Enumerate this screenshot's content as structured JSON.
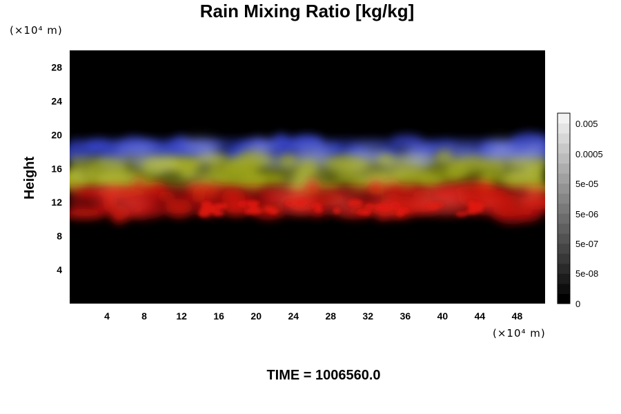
{
  "chart_data": {
    "type": "heatmap",
    "title": "Rain Mixing Ratio [kg/kg]",
    "ylabel": "Height",
    "xlabel": "",
    "x_unit": "(×10⁴ m)",
    "y_unit": "(×10⁴ m)",
    "xlim": [
      0,
      51
    ],
    "ylim": [
      0,
      30
    ],
    "x_ticks": [
      4,
      8,
      12,
      16,
      20,
      24,
      28,
      32,
      36,
      40,
      44,
      48
    ],
    "y_ticks": [
      4,
      8,
      12,
      16,
      20,
      24,
      28
    ],
    "colorbar": {
      "labels": [
        "0.005",
        "0.0005",
        "5e-05",
        "5e-06",
        "5e-07",
        "5e-08",
        "0"
      ],
      "colors": [
        "#000000",
        "#0e0e0e",
        "#1c1c1c",
        "#2a2a2a",
        "#383838",
        "#454545",
        "#525252",
        "#5f5f5f",
        "#6c6c6c",
        "#797979",
        "#868686",
        "#939393",
        "#a0a0a0",
        "#adadad",
        "#bbbbbb",
        "#c8c8c8",
        "#d6d6d6",
        "#e4e4e4",
        "#f2f2f2"
      ]
    },
    "layers": [
      {
        "band": "blue",
        "color": "#3c4ad8",
        "height_range": [
          16.5,
          19.5
        ]
      },
      {
        "band": "yellow",
        "color": "#aab21c",
        "height_range": [
          13.5,
          17.5
        ]
      },
      {
        "band": "red",
        "color": "#d8140e",
        "height_range": [
          10.5,
          14
        ]
      }
    ],
    "background": "#000000"
  },
  "footer": {
    "time": "TIME = 1006560.0"
  }
}
